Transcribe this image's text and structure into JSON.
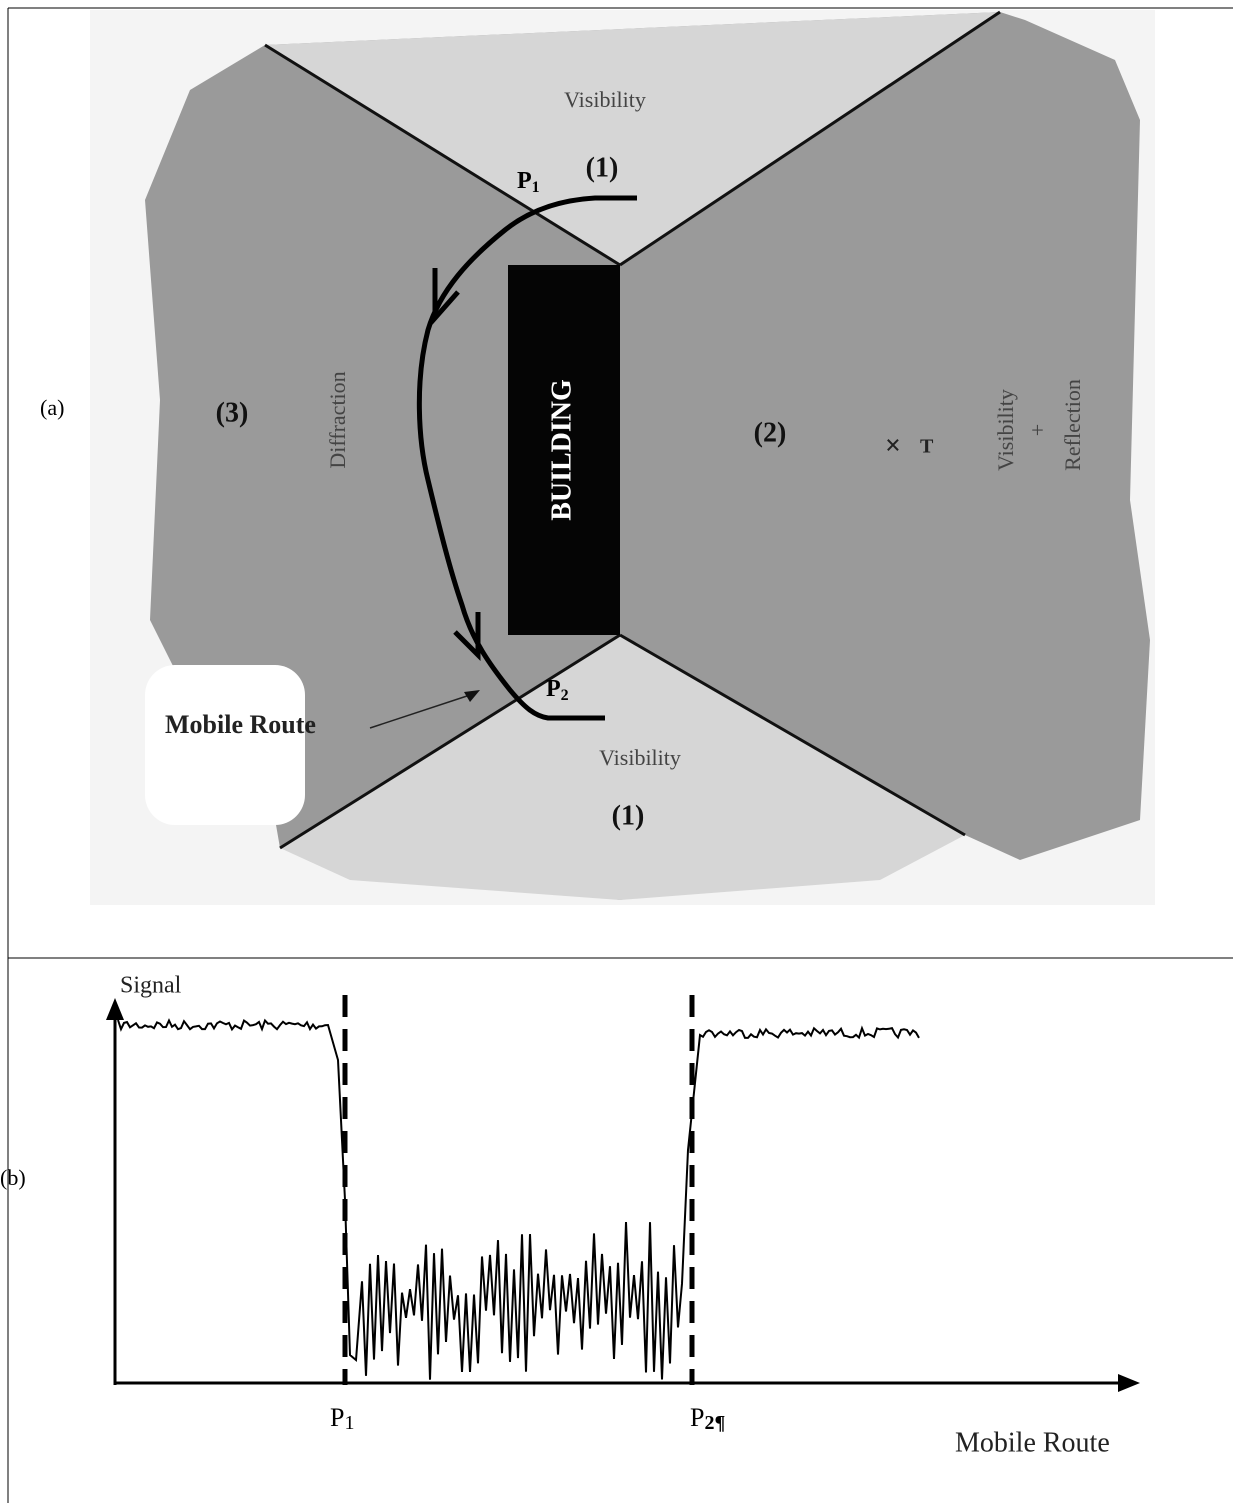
{
  "panel_a": {
    "label": "(a)",
    "top_region": {
      "text": "Visibility",
      "number": "(1)"
    },
    "bottom_region": {
      "text": "Visibility",
      "number": "(1)"
    },
    "left_region": {
      "text": "Diffraction",
      "number": "(3)"
    },
    "right_region": {
      "text_lines": [
        "Visibility",
        "+",
        "Reflection"
      ],
      "number": "(2)"
    },
    "building": "BUILDING",
    "transmitter": "T",
    "point_1": {
      "base": "P",
      "sub": "1"
    },
    "point_2": {
      "base": "P",
      "sub": "2"
    },
    "route_label": "Mobile Route"
  },
  "panel_b": {
    "label": "(b)",
    "y_axis": "Signal",
    "x_axis": "Mobile Route",
    "point_1": {
      "base": "P",
      "sub": "1"
    },
    "point_2": {
      "base": "P",
      "sub": "2¶"
    }
  }
}
